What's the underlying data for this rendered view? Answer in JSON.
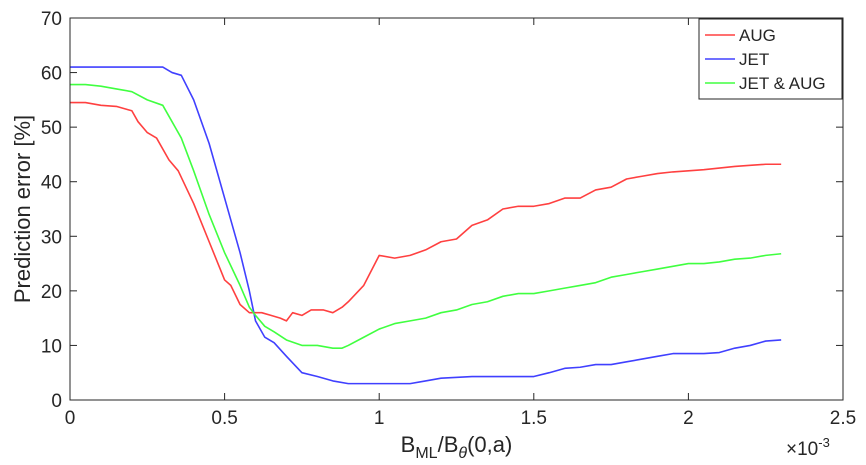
{
  "chart_data": {
    "type": "line",
    "xlabel": "B_ML/B_θ(0,a)",
    "xlabel_parts": {
      "base1": "B",
      "sub1": "ML",
      "slash": "/",
      "base2": "B",
      "sub2": "θ",
      "rest": "(0,a)"
    },
    "ylabel": "Prediction error [%]",
    "x_multiplier": {
      "base": "×10",
      "exponent": "-3"
    },
    "xlim": [
      0,
      2.5
    ],
    "ylim": [
      0,
      70
    ],
    "x_ticks": [
      0,
      0.5,
      1,
      1.5,
      2,
      2.5
    ],
    "x_tick_labels": [
      "0",
      "0.5",
      "1",
      "1.5",
      "2",
      "2.5"
    ],
    "y_ticks": [
      0,
      10,
      20,
      30,
      40,
      50,
      60,
      70
    ],
    "y_tick_labels": [
      "0",
      "10",
      "20",
      "30",
      "40",
      "50",
      "60",
      "70"
    ],
    "grid": false,
    "legend_position": "top-right",
    "series": [
      {
        "name": "AUG",
        "color": "#ff4040",
        "x": [
          0,
          0.05,
          0.1,
          0.15,
          0.2,
          0.22,
          0.25,
          0.28,
          0.32,
          0.35,
          0.4,
          0.45,
          0.5,
          0.52,
          0.55,
          0.58,
          0.62,
          0.65,
          0.68,
          0.7,
          0.72,
          0.75,
          0.78,
          0.82,
          0.85,
          0.88,
          0.9,
          0.95,
          1.0,
          1.05,
          1.1,
          1.15,
          1.2,
          1.25,
          1.3,
          1.35,
          1.4,
          1.45,
          1.5,
          1.55,
          1.6,
          1.65,
          1.7,
          1.75,
          1.8,
          1.85,
          1.9,
          1.95,
          2.0,
          2.05,
          2.1,
          2.15,
          2.2,
          2.25,
          2.3
        ],
        "values": [
          54.5,
          54.5,
          54,
          53.8,
          53,
          51,
          49,
          48,
          44,
          42,
          36,
          29,
          22,
          21,
          17.5,
          16,
          16,
          15.5,
          15,
          14.5,
          16,
          15.5,
          16.5,
          16.5,
          16,
          17,
          18,
          21,
          26.5,
          26,
          26.5,
          27.5,
          29,
          29.5,
          32,
          33,
          35,
          35.5,
          35.5,
          36,
          37,
          37,
          38.5,
          39,
          40.5,
          41,
          41.5,
          41.8,
          42,
          42.2,
          42.5,
          42.8,
          43,
          43.2,
          43.2
        ]
      },
      {
        "name": "JET",
        "color": "#4040ff",
        "x": [
          0,
          0.1,
          0.2,
          0.3,
          0.33,
          0.36,
          0.4,
          0.45,
          0.5,
          0.55,
          0.58,
          0.6,
          0.63,
          0.66,
          0.7,
          0.75,
          0.8,
          0.85,
          0.9,
          1.0,
          1.05,
          1.1,
          1.15,
          1.2,
          1.3,
          1.4,
          1.5,
          1.55,
          1.6,
          1.65,
          1.7,
          1.75,
          1.8,
          1.85,
          1.9,
          1.95,
          2.0,
          2.05,
          2.1,
          2.15,
          2.2,
          2.25,
          2.3
        ],
        "values": [
          61,
          61,
          61,
          61,
          60,
          59.5,
          55,
          47,
          37,
          27,
          20,
          14.5,
          11.5,
          10.5,
          8,
          5,
          4.3,
          3.5,
          3,
          3,
          3,
          3,
          3.5,
          4,
          4.3,
          4.3,
          4.3,
          5,
          5.8,
          6,
          6.5,
          6.5,
          7,
          7.5,
          8,
          8.5,
          8.5,
          8.5,
          8.7,
          9.5,
          10,
          10.8,
          11
        ]
      },
      {
        "name": "JET & AUG",
        "color": "#40ff40",
        "x": [
          0,
          0.05,
          0.1,
          0.15,
          0.2,
          0.25,
          0.3,
          0.33,
          0.36,
          0.4,
          0.45,
          0.5,
          0.55,
          0.58,
          0.6,
          0.63,
          0.66,
          0.7,
          0.75,
          0.8,
          0.85,
          0.88,
          0.9,
          0.95,
          1.0,
          1.05,
          1.1,
          1.15,
          1.2,
          1.25,
          1.3,
          1.35,
          1.4,
          1.45,
          1.5,
          1.55,
          1.6,
          1.65,
          1.7,
          1.75,
          1.8,
          1.85,
          1.9,
          1.95,
          2.0,
          2.05,
          2.1,
          2.15,
          2.2,
          2.25,
          2.3
        ],
        "values": [
          57.8,
          57.8,
          57.5,
          57,
          56.5,
          55,
          54,
          51,
          48,
          42,
          34,
          27,
          21,
          17,
          15.5,
          13.5,
          12.5,
          11,
          10,
          10,
          9.5,
          9.5,
          10,
          11.5,
          13,
          14,
          14.5,
          15,
          16,
          16.5,
          17.5,
          18,
          19,
          19.5,
          19.5,
          20,
          20.5,
          21,
          21.5,
          22.5,
          23,
          23.5,
          24,
          24.5,
          25,
          25,
          25.3,
          25.8,
          26,
          26.5,
          26.8
        ]
      }
    ]
  }
}
